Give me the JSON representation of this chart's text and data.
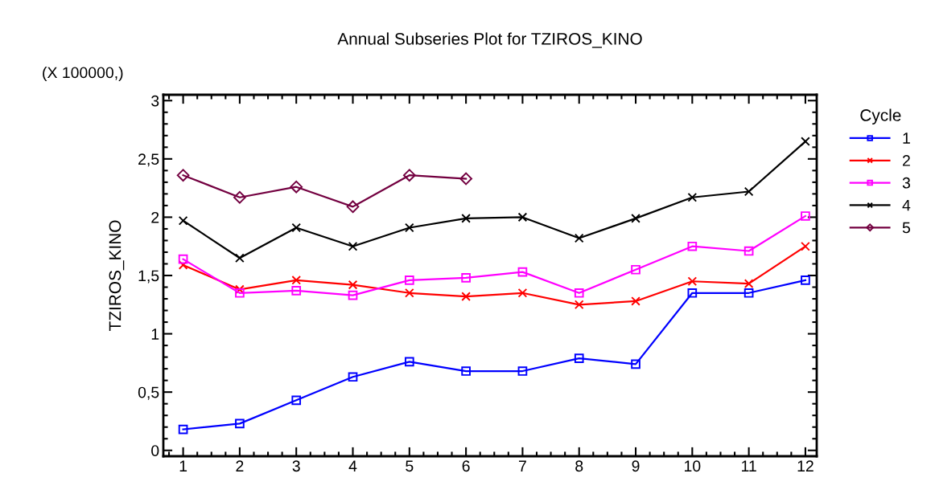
{
  "chart_data": {
    "type": "line",
    "title": "Annual Subseries Plot for TZIROS_KINO",
    "ylabel": "TZIROS_KINO",
    "legend_title": "Cycle",
    "annotations": [
      "(X 100000,)"
    ],
    "categories": [
      "1",
      "2",
      "3",
      "4",
      "5",
      "6",
      "7",
      "8",
      "9",
      "10",
      "11",
      "12"
    ],
    "series": [
      {
        "name": "1",
        "color": "#0000ff",
        "marker": "square",
        "values": [
          0.18,
          0.23,
          0.43,
          0.63,
          0.76,
          0.68,
          0.68,
          0.79,
          0.74,
          1.35,
          1.35,
          1.46
        ]
      },
      {
        "name": "2",
        "color": "#ff0000",
        "marker": "cross",
        "values": [
          1.59,
          1.38,
          1.46,
          1.42,
          1.35,
          1.32,
          1.35,
          1.25,
          1.28,
          1.45,
          1.43,
          1.75
        ]
      },
      {
        "name": "3",
        "color": "#ff00ff",
        "marker": "square",
        "values": [
          1.64,
          1.35,
          1.37,
          1.33,
          1.46,
          1.48,
          1.53,
          1.35,
          1.55,
          1.75,
          1.71,
          2.01
        ]
      },
      {
        "name": "4",
        "color": "#000000",
        "marker": "cross",
        "values": [
          1.97,
          1.65,
          1.91,
          1.75,
          1.91,
          1.99,
          2.0,
          1.82,
          1.99,
          2.17,
          2.22,
          2.65
        ]
      },
      {
        "name": "5",
        "color": "#730040",
        "marker": "diamond",
        "values": [
          2.36,
          2.17,
          2.26,
          2.09,
          2.36,
          2.33,
          null,
          null,
          null,
          null,
          null,
          null
        ]
      }
    ],
    "ylim": [
      -0.05,
      3.05
    ],
    "yticks": [
      0,
      {
        "value": 0.5,
        "label": "0,5"
      },
      1,
      {
        "value": 1.5,
        "label": "1,5"
      },
      2,
      {
        "value": 2.5,
        "label": "2,5"
      },
      3
    ],
    "grid": false,
    "legend": "right"
  }
}
